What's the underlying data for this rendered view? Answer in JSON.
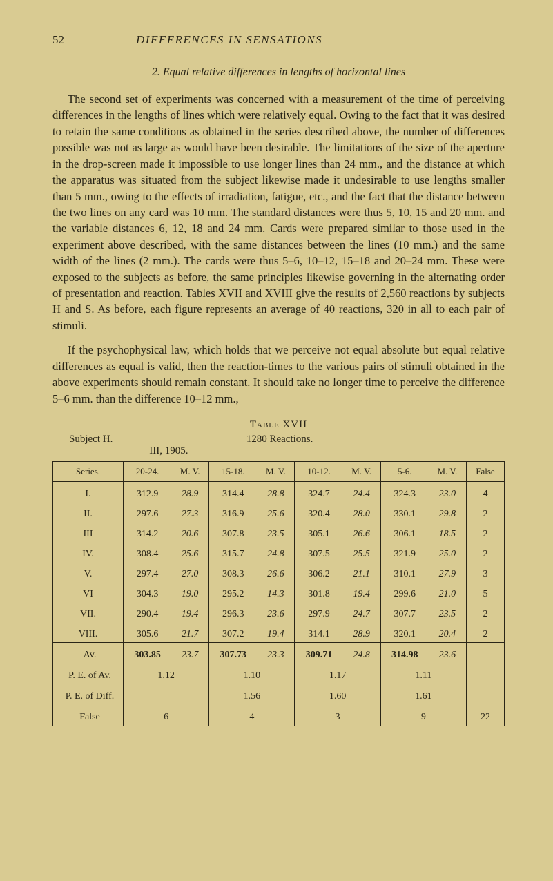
{
  "page": {
    "number": "52",
    "heading": "DIFFERENCES IN SENSATIONS",
    "sectionTitle": "2. Equal relative differences in lengths of horizontal lines",
    "para1": "The second set of experiments was concerned with a measurement of the time of perceiving differences in the lengths of lines which were relatively equal. Owing to the fact that it was desired to retain the same conditions as obtained in the series described above, the number of differences possible was not as large as would have been desirable. The limitations of the size of the aperture in the drop-screen made it impossible to use longer lines than 24 mm., and the distance at which the apparatus was situated from the subject likewise made it undesirable to use lengths smaller than 5 mm., owing to the effects of irradiation, fatigue, etc., and the fact that the distance between the two lines on any card was 10 mm. The standard distances were thus 5, 10, 15 and 20 mm. and the variable distances 6, 12, 18 and 24 mm. Cards were prepared similar to those used in the experiment above described, with the same distances between the lines (10 mm.) and the same width of the lines (2 mm.). The cards were thus 5–6, 10–12, 15–18 and 20–24 mm. These were exposed to the subjects as before, the same principles likewise governing in the alternating order of presentation and reaction. Tables XVII and XVIII give the results of 2,560 reactions by subjects H and S. As before, each figure represents an average of 40 reactions, 320 in all to each pair of stimuli.",
    "para2": "If the psychophysical law, which holds that we perceive not equal absolute but equal relative differences as equal is valid, then the reaction-times to the various pairs of stimuli obtained in the above experiments should remain constant. It should take no longer time to perceive the difference 5–6 mm. than the difference 10–12 mm.,"
  },
  "table": {
    "caption": "Table XVII",
    "subcaptionLeft": "Subject H.",
    "subcaptionMid": "1280 Reactions.",
    "subcaptionRight": "III, 1905.",
    "headers": {
      "series": "Series.",
      "c1": "20-24.",
      "c1mv": "M. V.",
      "c2": "15-18.",
      "c2mv": "M. V.",
      "c3": "10-12.",
      "c3mv": "M. V.",
      "c4": "5-6.",
      "c4mv": "M. V.",
      "false": "False"
    },
    "rows": [
      {
        "s": "I.",
        "a": "312.9",
        "amv": "28.9",
        "b": "314.4",
        "bmv": "28.8",
        "c": "324.7",
        "cmv": "24.4",
        "d": "324.3",
        "dmv": "23.0",
        "f": "4"
      },
      {
        "s": "II.",
        "a": "297.6",
        "amv": "27.3",
        "b": "316.9",
        "bmv": "25.6",
        "c": "320.4",
        "cmv": "28.0",
        "d": "330.1",
        "dmv": "29.8",
        "f": "2"
      },
      {
        "s": "III",
        "a": "314.2",
        "amv": "20.6",
        "b": "307.8",
        "bmv": "23.5",
        "c": "305.1",
        "cmv": "26.6",
        "d": "306.1",
        "dmv": "18.5",
        "f": "2"
      },
      {
        "s": "IV.",
        "a": "308.4",
        "amv": "25.6",
        "b": "315.7",
        "bmv": "24.8",
        "c": "307.5",
        "cmv": "25.5",
        "d": "321.9",
        "dmv": "25.0",
        "f": "2"
      },
      {
        "s": "V.",
        "a": "297.4",
        "amv": "27.0",
        "b": "308.3",
        "bmv": "26.6",
        "c": "306.2",
        "cmv": "21.1",
        "d": "310.1",
        "dmv": "27.9",
        "f": "3"
      },
      {
        "s": "VI",
        "a": "304.3",
        "amv": "19.0",
        "b": "295.2",
        "bmv": "14.3",
        "c": "301.8",
        "cmv": "19.4",
        "d": "299.6",
        "dmv": "21.0",
        "f": "5"
      },
      {
        "s": "VII.",
        "a": "290.4",
        "amv": "19.4",
        "b": "296.3",
        "bmv": "23.6",
        "c": "297.9",
        "cmv": "24.7",
        "d": "307.7",
        "dmv": "23.5",
        "f": "2"
      },
      {
        "s": "VIII.",
        "a": "305.6",
        "amv": "21.7",
        "b": "307.2",
        "bmv": "19.4",
        "c": "314.1",
        "cmv": "28.9",
        "d": "320.1",
        "dmv": "20.4",
        "f": "2"
      }
    ],
    "summary": {
      "avLabel": "Av.",
      "av": {
        "a": "303.85",
        "amv": "23.7",
        "b": "307.73",
        "bmv": "23.3",
        "c": "309.71",
        "cmv": "24.8",
        "d": "314.98",
        "dmv": "23.6"
      },
      "peAvLabel": "P. E. of Av.",
      "peAv": {
        "a": "1.12",
        "b": "1.10",
        "c": "1.17",
        "d": "1.11"
      },
      "peDiffLabel": "P. E. of Diff.",
      "peDiff": {
        "b": "1.56",
        "c": "1.60",
        "d": "1.61"
      },
      "falseLabel": "False",
      "falseRow": {
        "a": "6",
        "b": "4",
        "c": "3",
        "d": "9",
        "f": "22"
      }
    }
  },
  "colors": {
    "background": "#d9cb92",
    "text": "#2a2618",
    "border": "#2a2618"
  },
  "typography": {
    "bodyFontSize": 16.5,
    "tableFontSize": 14,
    "headerFontSize": 17,
    "fontFamily": "Georgia, Times New Roman, serif"
  }
}
